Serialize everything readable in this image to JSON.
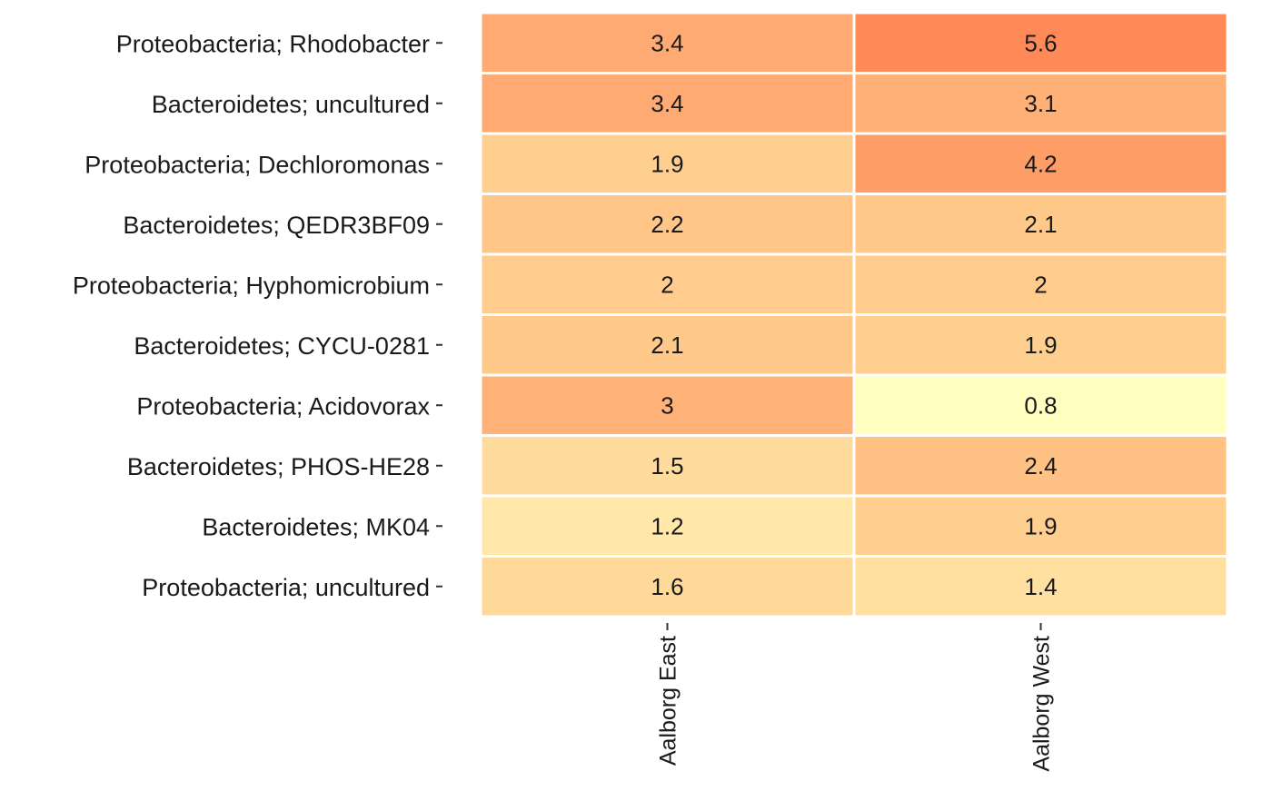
{
  "chart_data": {
    "type": "heatmap",
    "title": "",
    "xlabel": "",
    "ylabel": "",
    "columns": [
      "Aalborg East",
      "Aalborg West"
    ],
    "rows": [
      "Proteobacteria; Rhodobacter",
      "Bacteroidetes; uncultured",
      "Proteobacteria; Dechloromonas",
      "Bacteroidetes; QEDR3BF09",
      "Proteobacteria; Hyphomicrobium",
      "Bacteroidetes; CYCU-0281",
      "Proteobacteria; Acidovorax",
      "Bacteroidetes; PHOS-HE28",
      "Bacteroidetes; MK04",
      "Proteobacteria; uncultured"
    ],
    "values": [
      [
        3.4,
        5.6
      ],
      [
        3.4,
        3.1
      ],
      [
        1.9,
        4.2
      ],
      [
        2.2,
        2.1
      ],
      [
        2,
        2
      ],
      [
        2.1,
        1.9
      ],
      [
        3,
        0.8
      ],
      [
        1.5,
        2.4
      ],
      [
        1.2,
        1.9
      ],
      [
        1.6,
        1.4
      ]
    ],
    "color_scale": {
      "low": "#FFFFC0",
      "mid": "#FFC98A",
      "high": "#FF8A58"
    },
    "legend": "none"
  }
}
